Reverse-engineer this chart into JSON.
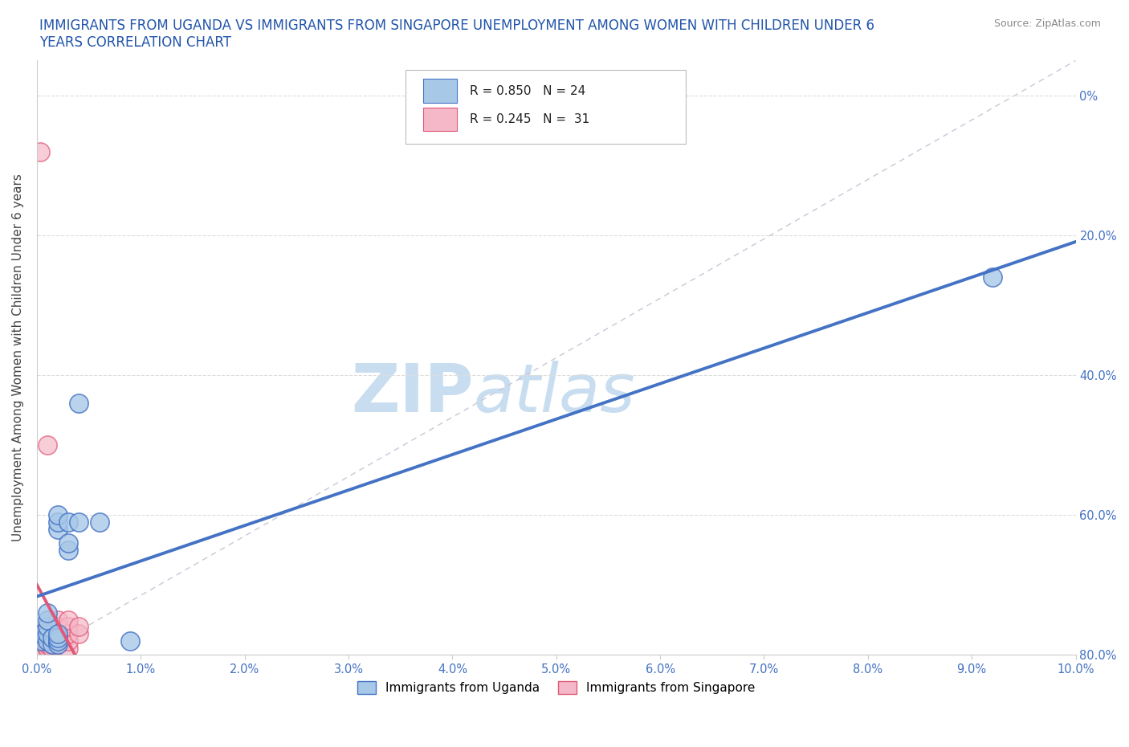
{
  "title": "IMMIGRANTS FROM UGANDA VS IMMIGRANTS FROM SINGAPORE UNEMPLOYMENT AMONG WOMEN WITH CHILDREN UNDER 6\nYEARS CORRELATION CHART",
  "source": "Source: ZipAtlas.com",
  "ylabel": "Unemployment Among Women with Children Under 6 years",
  "xlim": [
    0.0,
    0.1
  ],
  "ylim": [
    0.0,
    0.85
  ],
  "xticks": [
    0.0,
    0.01,
    0.02,
    0.03,
    0.04,
    0.05,
    0.06,
    0.07,
    0.08,
    0.09,
    0.1
  ],
  "yticks": [
    0.0,
    0.2,
    0.4,
    0.6,
    0.8
  ],
  "ytick_labels_right": [
    "80.0%",
    "60.0%",
    "40.0%",
    "20.0%",
    "0%"
  ],
  "ytick_labels_left": [
    "",
    "",
    "",
    "",
    ""
  ],
  "xtick_labels": [
    "0.0%",
    "1.0%",
    "2.0%",
    "3.0%",
    "4.0%",
    "5.0%",
    "6.0%",
    "7.0%",
    "8.0%",
    "9.0%",
    "10.0%"
  ],
  "legend_r1": "R = 0.850",
  "legend_n1": "N = 24",
  "legend_r2": "R = 0.245",
  "legend_n2": "N =  31",
  "color_uganda": "#a8c8e8",
  "color_singapore": "#f5b8c8",
  "line_color_uganda": "#4472c4",
  "line_color_singapore": "#e05878",
  "ref_line_color": "#c8c8d8",
  "watermark_zip": "ZIP",
  "watermark_atlas": "atlas",
  "watermark_color_zip": "#c8ddf0",
  "watermark_color_atlas": "#c8ddf0",
  "background": "#ffffff",
  "uganda_x": [
    0.0005,
    0.0005,
    0.001,
    0.001,
    0.001,
    0.001,
    0.001,
    0.0015,
    0.0015,
    0.002,
    0.002,
    0.002,
    0.002,
    0.002,
    0.002,
    0.002,
    0.003,
    0.003,
    0.003,
    0.004,
    0.004,
    0.006,
    0.009,
    0.092
  ],
  "uganda_y": [
    0.02,
    0.03,
    0.02,
    0.03,
    0.04,
    0.05,
    0.06,
    0.015,
    0.025,
    0.015,
    0.02,
    0.025,
    0.03,
    0.18,
    0.19,
    0.2,
    0.15,
    0.16,
    0.19,
    0.19,
    0.36,
    0.19,
    0.02,
    0.54
  ],
  "singapore_x": [
    0.0003,
    0.0003,
    0.0005,
    0.0005,
    0.0005,
    0.0007,
    0.0007,
    0.0007,
    0.001,
    0.001,
    0.001,
    0.001,
    0.001,
    0.001,
    0.001,
    0.0015,
    0.0015,
    0.0015,
    0.002,
    0.002,
    0.002,
    0.002,
    0.002,
    0.002,
    0.003,
    0.003,
    0.003,
    0.003,
    0.003,
    0.004,
    0.004
  ],
  "singapore_y": [
    0.01,
    0.72,
    0.01,
    0.02,
    0.03,
    0.01,
    0.015,
    0.02,
    0.01,
    0.015,
    0.02,
    0.025,
    0.03,
    0.04,
    0.3,
    0.01,
    0.015,
    0.02,
    0.015,
    0.02,
    0.025,
    0.03,
    0.04,
    0.05,
    0.01,
    0.02,
    0.03,
    0.04,
    0.05,
    0.03,
    0.04
  ]
}
